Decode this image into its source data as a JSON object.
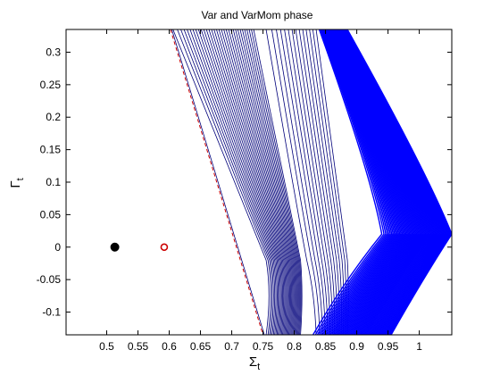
{
  "chart_data": {
    "type": "line",
    "title": "Var and VarMom phase",
    "xlabel": "Σ",
    "xlabel_subscript": "t",
    "ylabel": "Γ",
    "ylabel_subscript": "t",
    "xlim": [
      0.435,
      1.052
    ],
    "ylim": [
      -0.135,
      0.335
    ],
    "xticks": [
      0.5,
      0.55,
      0.6,
      0.65,
      0.7,
      0.75,
      0.8,
      0.85,
      0.9,
      0.95,
      1
    ],
    "yticks": [
      -0.1,
      -0.05,
      0,
      0.05,
      0.1,
      0.15,
      0.2,
      0.25,
      0.3
    ],
    "x_tick_labels": [
      "0.5",
      "0.55",
      "0.6",
      "0.65",
      "0.7",
      "0.75",
      "0.8",
      "0.85",
      "0.9",
      "0.95",
      "1"
    ],
    "y_tick_labels": [
      "-0.1",
      "-0.05",
      "0",
      "0.05",
      "0.1",
      "0.15",
      "0.2",
      "0.25",
      "0.3"
    ],
    "grid": false,
    "series_colors": {
      "trajectories": "#00007a",
      "dense_band": "#0000ff",
      "dashed_boundary": "#cc0000"
    },
    "trajectory_family": {
      "description_free": true,
      "left_boundary": {
        "top": [
          0.602,
          0.335
        ],
        "bottom": [
          0.75,
          -0.135
        ],
        "style": "dashed"
      },
      "inner_curves": {
        "count": 32,
        "top_x": [
          0.606,
          0.735
        ],
        "vertex_x": [
          0.755,
          0.81
        ],
        "vertex_y": -0.02,
        "bottom_x": [
          0.755,
          0.81
        ]
      },
      "middle_curves": {
        "count": 14,
        "top_x": [
          0.755,
          0.835
        ],
        "vertex_x": [
          0.82,
          0.885
        ],
        "vertex_y": -0.02,
        "bottom_x": [
          0.835,
          0.885
        ]
      },
      "outer_band": {
        "count": 60,
        "top_x": [
          0.84,
          0.885
        ],
        "vertex_x": [
          0.94,
          1.052
        ],
        "vertex_y": 0.02,
        "bottom_x": [
          0.83,
          0.955
        ]
      }
    },
    "points": [
      {
        "name": "filled",
        "x": 0.513,
        "y": 0.0,
        "color": "#000000",
        "marker": "filled-circle"
      },
      {
        "name": "open",
        "x": 0.592,
        "y": 0.0,
        "color": "#cc0000",
        "marker": "open-circle"
      }
    ]
  }
}
